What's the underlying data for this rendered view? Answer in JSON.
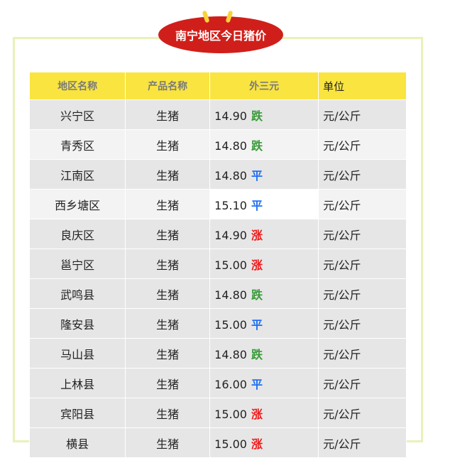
{
  "title": "南宁地区今日猪价",
  "headers": [
    "地区名称",
    "产品名称",
    "外三元",
    "单位"
  ],
  "trend_colors": {
    "跌": "#3a9a3a",
    "平": "#1f6ff0",
    "涨": "#f01818"
  },
  "rows": [
    {
      "region": "兴宁区",
      "product": "生猪",
      "price": "14.90",
      "trend": "跌",
      "unit": "元/公斤"
    },
    {
      "region": "青秀区",
      "product": "生猪",
      "price": "14.80",
      "trend": "跌",
      "unit": "元/公斤"
    },
    {
      "region": "江南区",
      "product": "生猪",
      "price": "14.80",
      "trend": "平",
      "unit": "元/公斤"
    },
    {
      "region": "西乡塘区",
      "product": "生猪",
      "price": "15.10",
      "trend": "平",
      "unit": "元/公斤"
    },
    {
      "region": "良庆区",
      "product": "生猪",
      "price": "14.90",
      "trend": "涨",
      "unit": "元/公斤"
    },
    {
      "region": "邕宁区",
      "product": "生猪",
      "price": "15.00",
      "trend": "涨",
      "unit": "元/公斤"
    },
    {
      "region": "武鸣县",
      "product": "生猪",
      "price": "14.80",
      "trend": "跌",
      "unit": "元/公斤"
    },
    {
      "region": "隆安县",
      "product": "生猪",
      "price": "15.00",
      "trend": "平",
      "unit": "元/公斤"
    },
    {
      "region": "马山县",
      "product": "生猪",
      "price": "14.80",
      "trend": "跌",
      "unit": "元/公斤"
    },
    {
      "region": "上林县",
      "product": "生猪",
      "price": "16.00",
      "trend": "平",
      "unit": "元/公斤"
    },
    {
      "region": "宾阳县",
      "product": "生猪",
      "price": "15.00",
      "trend": "涨",
      "unit": "元/公斤"
    },
    {
      "region": "横县",
      "product": "生猪",
      "price": "15.00",
      "trend": "涨",
      "unit": "元/公斤"
    }
  ]
}
